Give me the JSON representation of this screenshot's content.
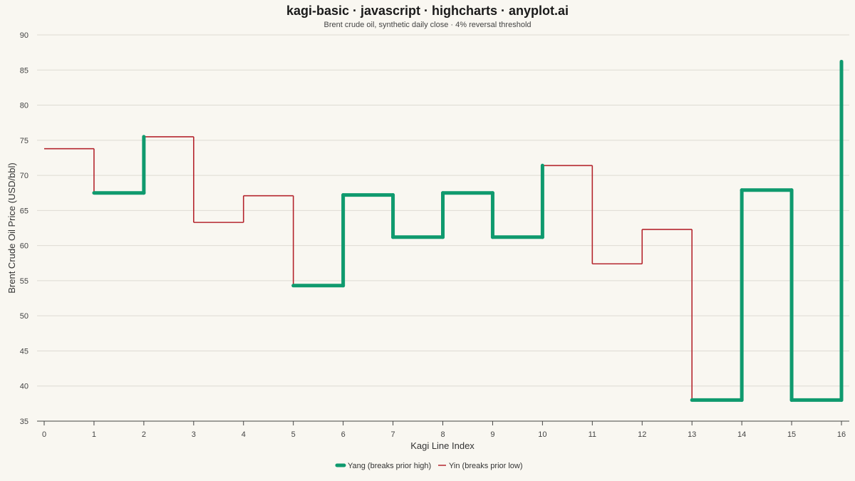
{
  "chart_data": {
    "type": "line",
    "subtype": "kagi",
    "title": "kagi-basic · javascript · highcharts · anyplot.ai",
    "subtitle": "Brent crude oil, synthetic daily close · 4% reversal threshold",
    "xlabel": "Kagi Line Index",
    "ylabel": "Brent Crude Oil Price (USD/bbl)",
    "xlim": [
      0,
      16
    ],
    "ylim": [
      35,
      90
    ],
    "xticks": [
      0,
      1,
      2,
      3,
      4,
      5,
      6,
      7,
      8,
      9,
      10,
      11,
      12,
      13,
      14,
      15,
      16
    ],
    "yticks": [
      35,
      40,
      45,
      50,
      55,
      60,
      65,
      70,
      75,
      80,
      85,
      90
    ],
    "grid": true,
    "legend_position": "bottom-center",
    "levels": [
      73.8,
      67.5,
      75.5,
      63.3,
      67.1,
      54.3,
      67.2,
      61.2,
      67.5,
      61.2,
      71.4,
      57.4,
      62.3,
      38.0,
      67.9,
      38.0,
      86.2
    ],
    "segments": [
      {
        "x0": 0,
        "x1": 1,
        "y": 73.8,
        "kind": "yin"
      },
      {
        "x": 1,
        "y0": 73.8,
        "y1": 67.5,
        "kind": "yin"
      },
      {
        "x0": 1,
        "x1": 2,
        "y": 67.5,
        "kind": "yang"
      },
      {
        "x": 2,
        "y0": 67.5,
        "y1": 75.5,
        "kind": "yang"
      },
      {
        "x0": 2,
        "x1": 3,
        "y": 75.5,
        "kind": "yin"
      },
      {
        "x": 3,
        "y0": 75.5,
        "y1": 63.3,
        "kind": "yin"
      },
      {
        "x0": 3,
        "x1": 4,
        "y": 63.3,
        "kind": "yin"
      },
      {
        "x": 4,
        "y0": 63.3,
        "y1": 67.1,
        "kind": "yin"
      },
      {
        "x0": 4,
        "x1": 5,
        "y": 67.1,
        "kind": "yin"
      },
      {
        "x": 5,
        "y0": 67.1,
        "y1": 54.3,
        "kind": "yin"
      },
      {
        "x0": 5,
        "x1": 6,
        "y": 54.3,
        "kind": "yang"
      },
      {
        "x": 6,
        "y0": 54.3,
        "y1": 67.2,
        "kind": "yang"
      },
      {
        "x0": 6,
        "x1": 7,
        "y": 67.2,
        "kind": "yang"
      },
      {
        "x": 7,
        "y0": 67.2,
        "y1": 61.2,
        "kind": "yang"
      },
      {
        "x0": 7,
        "x1": 8,
        "y": 61.2,
        "kind": "yang"
      },
      {
        "x": 8,
        "y0": 61.2,
        "y1": 67.5,
        "kind": "yang"
      },
      {
        "x0": 8,
        "x1": 9,
        "y": 67.5,
        "kind": "yang"
      },
      {
        "x": 9,
        "y0": 67.5,
        "y1": 61.2,
        "kind": "yang"
      },
      {
        "x0": 9,
        "x1": 10,
        "y": 61.2,
        "kind": "yang"
      },
      {
        "x": 10,
        "y0": 61.2,
        "y1": 71.4,
        "kind": "yang"
      },
      {
        "x0": 10,
        "x1": 11,
        "y": 71.4,
        "kind": "yin"
      },
      {
        "x": 11,
        "y0": 71.4,
        "y1": 57.4,
        "kind": "yin"
      },
      {
        "x0": 11,
        "x1": 12,
        "y": 57.4,
        "kind": "yin"
      },
      {
        "x": 12,
        "y0": 57.4,
        "y1": 62.3,
        "kind": "yin"
      },
      {
        "x0": 12,
        "x1": 13,
        "y": 62.3,
        "kind": "yin"
      },
      {
        "x": 13,
        "y0": 62.3,
        "y1": 38.0,
        "kind": "yin"
      },
      {
        "x0": 13,
        "x1": 14,
        "y": 38.0,
        "kind": "yang"
      },
      {
        "x": 14,
        "y0": 38.0,
        "y1": 67.9,
        "kind": "yang"
      },
      {
        "x0": 14,
        "x1": 15,
        "y": 67.9,
        "kind": "yang"
      },
      {
        "x": 15,
        "y0": 67.9,
        "y1": 38.0,
        "kind": "yang"
      },
      {
        "x0": 15,
        "x1": 16,
        "y": 38.0,
        "kind": "yang"
      },
      {
        "x": 16,
        "y0": 38.0,
        "y1": 86.2,
        "kind": "yang"
      }
    ],
    "series": [
      {
        "name": "Yang (breaks prior high)",
        "kind": "yang",
        "color": "#0f9a6e"
      },
      {
        "name": "Yin (breaks prior low)",
        "kind": "yin",
        "color": "#b5272f"
      }
    ]
  }
}
